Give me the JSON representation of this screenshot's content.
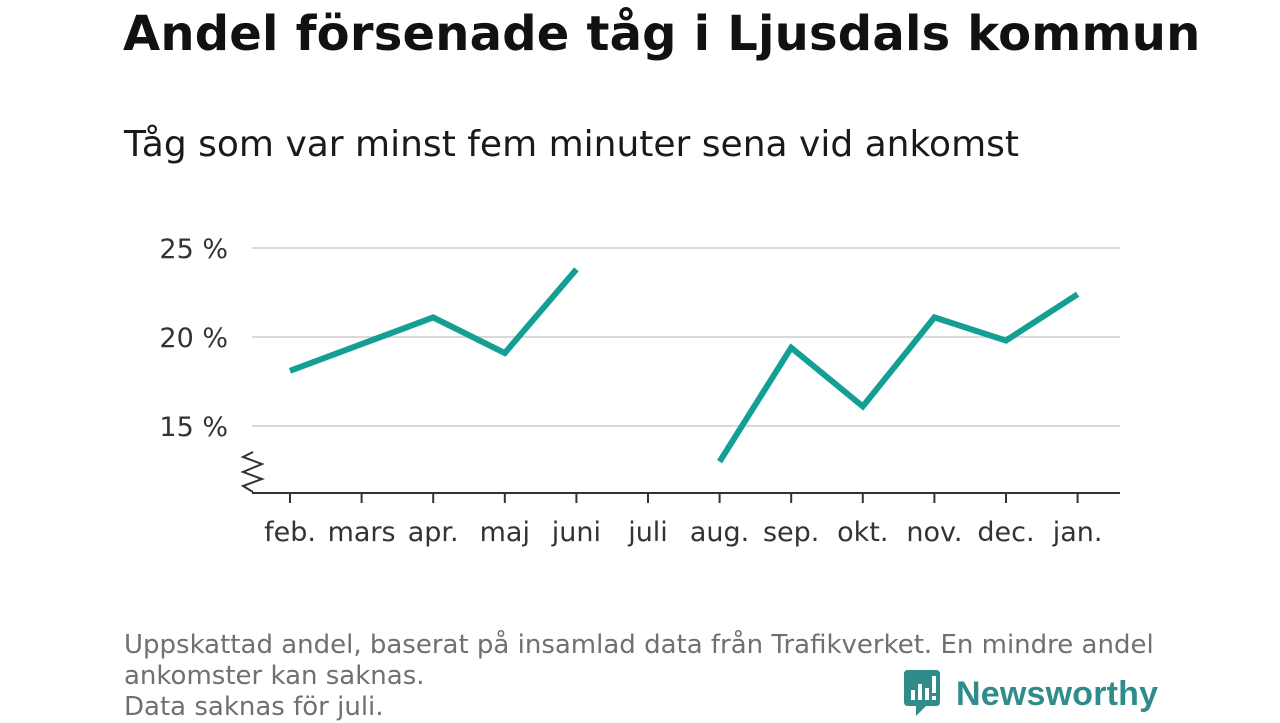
{
  "title": "Andel försenade tåg i Ljusdals kommun",
  "subtitle": "Tåg som var minst fem minuter sena vid ankomst",
  "chart_data": {
    "type": "line",
    "categories": [
      "feb.",
      "mars",
      "apr.",
      "maj",
      "juni",
      "juli",
      "aug.",
      "sep.",
      "okt.",
      "nov.",
      "dec.",
      "jan."
    ],
    "series": [
      {
        "values": [
          18.1,
          19.6,
          21.1,
          19.1,
          23.8,
          null,
          13.0,
          19.4,
          16.1,
          21.1,
          19.8,
          22.4
        ]
      }
    ],
    "yticks": [
      15,
      20,
      25
    ],
    "ytick_labels": [
      "15 %",
      "20 %",
      "25 %"
    ],
    "ylim": [
      11.2,
      25
    ],
    "y_axis_break": true,
    "grid": true,
    "line_color": "#139f94"
  },
  "footnote": {
    "line1": "Uppskattad andel, baserat på insamlad data från Trafikverket. En mindre andel",
    "line2": "ankomster kan saknas.",
    "line3": "Data saknas för juli."
  },
  "logo": {
    "text": "Newsworthy",
    "color": "#2f8c8a"
  }
}
